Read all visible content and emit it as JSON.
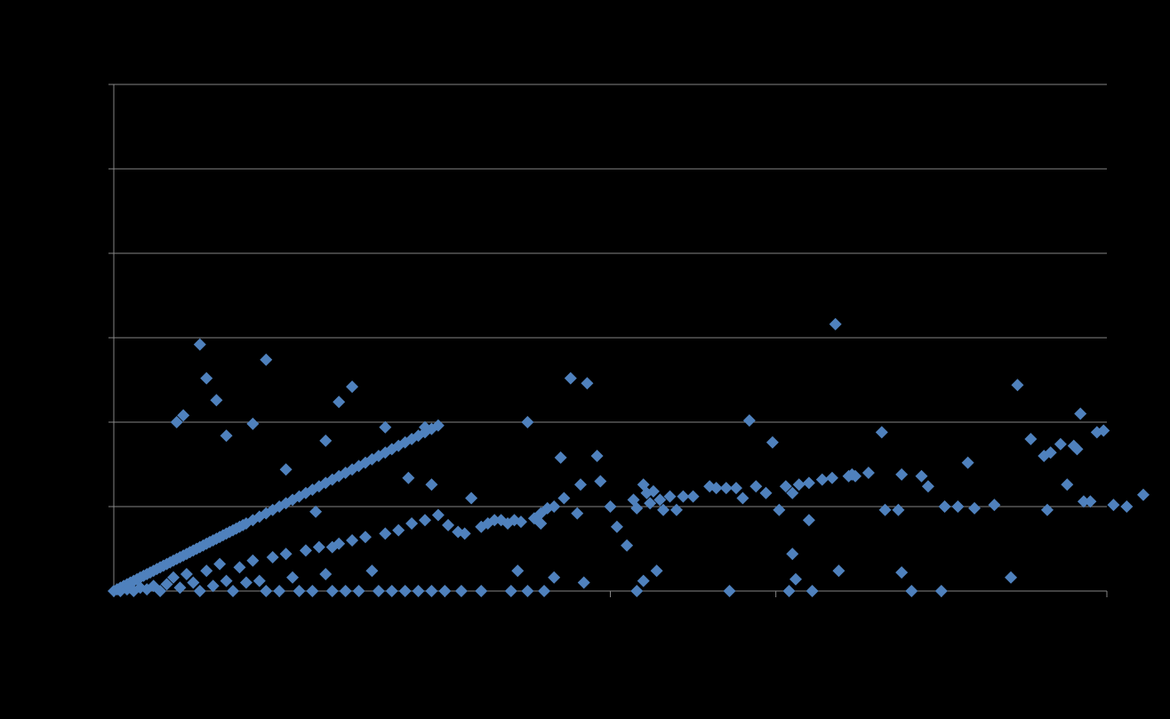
{
  "chart_data": {
    "type": "scatter",
    "title": "",
    "xlabel": "",
    "ylabel": "",
    "xlim": [
      0,
      300
    ],
    "ylim": [
      0,
      300
    ],
    "grid": true,
    "marker": "diamond",
    "colors": {
      "background": "#000000",
      "marker": "#4F81BD",
      "gridline": "#858585"
    },
    "series": [
      {
        "points": [
          [
            0,
            0
          ],
          [
            1,
            1
          ],
          [
            2,
            2
          ],
          [
            2,
            0
          ],
          [
            3,
            3
          ],
          [
            4,
            4
          ],
          [
            4,
            1
          ],
          [
            5,
            5
          ],
          [
            5,
            2
          ],
          [
            6,
            6
          ],
          [
            6,
            0
          ],
          [
            7,
            7
          ],
          [
            8,
            8
          ],
          [
            8,
            2
          ],
          [
            9,
            9
          ],
          [
            10,
            10
          ],
          [
            10,
            1
          ],
          [
            11,
            11
          ],
          [
            12,
            12
          ],
          [
            12,
            3
          ],
          [
            13,
            13
          ],
          [
            14,
            14
          ],
          [
            14,
            0
          ],
          [
            15,
            15
          ],
          [
            16,
            16
          ],
          [
            16,
            4
          ],
          [
            17,
            17
          ],
          [
            18,
            18
          ],
          [
            18,
            8
          ],
          [
            19,
            19
          ],
          [
            20,
            20
          ],
          [
            20,
            2
          ],
          [
            21,
            21
          ],
          [
            22,
            22
          ],
          [
            22,
            10
          ],
          [
            23,
            23
          ],
          [
            24,
            24
          ],
          [
            24,
            5
          ],
          [
            25,
            25
          ],
          [
            26,
            26
          ],
          [
            26,
            0
          ],
          [
            27,
            27
          ],
          [
            28,
            28
          ],
          [
            28,
            12
          ],
          [
            29,
            29
          ],
          [
            30,
            30
          ],
          [
            30,
            3
          ],
          [
            31,
            31
          ],
          [
            32,
            32
          ],
          [
            32,
            16
          ],
          [
            33,
            33
          ],
          [
            34,
            34
          ],
          [
            34,
            6
          ],
          [
            35,
            35
          ],
          [
            36,
            36
          ],
          [
            36,
            0
          ],
          [
            37,
            37
          ],
          [
            38,
            38
          ],
          [
            38,
            14
          ],
          [
            39,
            39
          ],
          [
            40,
            40
          ],
          [
            40,
            5
          ],
          [
            42,
            42
          ],
          [
            42,
            18
          ],
          [
            44,
            44
          ],
          [
            44,
            6
          ],
          [
            46,
            46
          ],
          [
            46,
            0
          ],
          [
            48,
            48
          ],
          [
            48,
            20
          ],
          [
            50,
            50
          ],
          [
            50,
            0
          ],
          [
            52,
            52
          ],
          [
            52,
            22
          ],
          [
            54,
            54
          ],
          [
            54,
            8
          ],
          [
            56,
            56
          ],
          [
            56,
            0
          ],
          [
            58,
            58
          ],
          [
            58,
            24
          ],
          [
            60,
            60
          ],
          [
            60,
            0
          ],
          [
            62,
            62
          ],
          [
            62,
            26
          ],
          [
            64,
            64
          ],
          [
            64,
            10
          ],
          [
            66,
            66
          ],
          [
            66,
            0
          ],
          [
            68,
            68
          ],
          [
            68,
            28
          ],
          [
            70,
            70
          ],
          [
            70,
            0
          ],
          [
            72,
            72
          ],
          [
            72,
            30
          ],
          [
            74,
            74
          ],
          [
            74,
            0
          ],
          [
            76,
            76
          ],
          [
            76,
            32
          ],
          [
            78,
            78
          ],
          [
            78,
            12
          ],
          [
            80,
            80
          ],
          [
            80,
            0
          ],
          [
            82,
            82
          ],
          [
            82,
            34
          ],
          [
            84,
            84
          ],
          [
            84,
            0
          ],
          [
            86,
            86
          ],
          [
            86,
            36
          ],
          [
            88,
            88
          ],
          [
            88,
            0
          ],
          [
            90,
            90
          ],
          [
            90,
            40
          ],
          [
            92,
            92
          ],
          [
            92,
            0
          ],
          [
            94,
            94
          ],
          [
            94,
            42
          ],
          [
            96,
            96
          ],
          [
            96,
            0
          ],
          [
            98,
            98
          ],
          [
            98,
            45
          ],
          [
            19,
            100
          ],
          [
            21,
            104
          ],
          [
            26,
            146
          ],
          [
            28,
            126
          ],
          [
            31,
            113
          ],
          [
            34,
            92
          ],
          [
            42,
            99
          ],
          [
            46,
            137
          ],
          [
            52,
            72
          ],
          [
            61,
            47
          ],
          [
            64,
            89
          ],
          [
            66,
            26
          ],
          [
            68,
            112
          ],
          [
            72,
            121
          ],
          [
            82,
            97
          ],
          [
            89,
            67
          ],
          [
            94,
            97
          ],
          [
            96,
            63
          ],
          [
            101,
            39
          ],
          [
            104,
            35
          ],
          [
            106,
            34
          ],
          [
            108,
            55
          ],
          [
            111,
            38
          ],
          [
            113,
            40
          ],
          [
            115,
            42
          ],
          [
            117,
            42
          ],
          [
            119,
            40
          ],
          [
            121,
            42
          ],
          [
            123,
            41
          ],
          [
            125,
            100
          ],
          [
            127,
            43
          ],
          [
            129,
            46
          ],
          [
            131,
            49
          ],
          [
            133,
            50
          ],
          [
            135,
            79
          ],
          [
            136,
            55
          ],
          [
            138,
            126
          ],
          [
            140,
            46
          ],
          [
            141,
            63
          ],
          [
            143,
            123
          ],
          [
            146,
            80
          ],
          [
            147,
            65
          ],
          [
            150,
            50
          ],
          [
            152,
            38
          ],
          [
            155,
            27
          ],
          [
            157,
            54
          ],
          [
            158,
            49
          ],
          [
            160,
            63
          ],
          [
            161,
            58
          ],
          [
            162,
            52
          ],
          [
            163,
            59
          ],
          [
            164,
            12
          ],
          [
            165,
            54
          ],
          [
            166,
            48
          ],
          [
            168,
            56
          ],
          [
            170,
            48
          ],
          [
            172,
            56
          ],
          [
            175,
            56
          ],
          [
            180,
            62
          ],
          [
            182,
            61
          ],
          [
            185,
            61
          ],
          [
            188,
            61
          ],
          [
            190,
            55
          ],
          [
            192,
            101
          ],
          [
            194,
            62
          ],
          [
            197,
            58
          ],
          [
            199,
            88
          ],
          [
            201,
            48
          ],
          [
            203,
            62
          ],
          [
            205,
            58
          ],
          [
            207,
            63
          ],
          [
            210,
            64
          ],
          [
            214,
            66
          ],
          [
            217,
            67
          ],
          [
            218,
            158
          ],
          [
            222,
            68
          ],
          [
            223,
            69
          ],
          [
            224,
            68
          ],
          [
            228,
            70
          ],
          [
            233,
            48
          ],
          [
            237,
            48
          ],
          [
            238,
            69
          ],
          [
            244,
            68
          ],
          [
            246,
            62
          ],
          [
            251,
            50
          ],
          [
            255,
            50
          ],
          [
            260,
            49
          ],
          [
            266,
            51
          ],
          [
            273,
            122
          ],
          [
            277,
            90
          ],
          [
            281,
            80
          ],
          [
            283,
            82
          ],
          [
            282,
            48
          ],
          [
            286,
            87
          ],
          [
            290,
            86
          ],
          [
            291,
            84
          ],
          [
            293,
            53
          ],
          [
            295,
            53
          ],
          [
            297,
            94
          ],
          [
            299,
            95
          ],
          [
            205,
            22
          ],
          [
            206,
            7
          ],
          [
            210,
            42
          ],
          [
            219,
            12
          ],
          [
            232,
            94
          ],
          [
            238,
            11
          ],
          [
            258,
            76
          ],
          [
            160,
            6
          ],
          [
            142,
            5
          ],
          [
            133,
            8
          ],
          [
            130,
            0
          ],
          [
            125,
            0
          ],
          [
            120,
            0
          ],
          [
            111,
            0
          ],
          [
            105,
            0
          ],
          [
            100,
            0
          ],
          [
            122,
            12
          ],
          [
            129,
            40
          ],
          [
            158,
            0
          ],
          [
            186,
            0
          ],
          [
            204,
            0
          ],
          [
            211,
            0
          ],
          [
            241,
            0
          ],
          [
            250,
            0
          ],
          [
            271,
            8
          ],
          [
            292,
            105
          ],
          [
            288,
            63
          ],
          [
            302,
            51
          ],
          [
            306,
            50
          ],
          [
            311,
            57
          ]
        ]
      }
    ]
  }
}
